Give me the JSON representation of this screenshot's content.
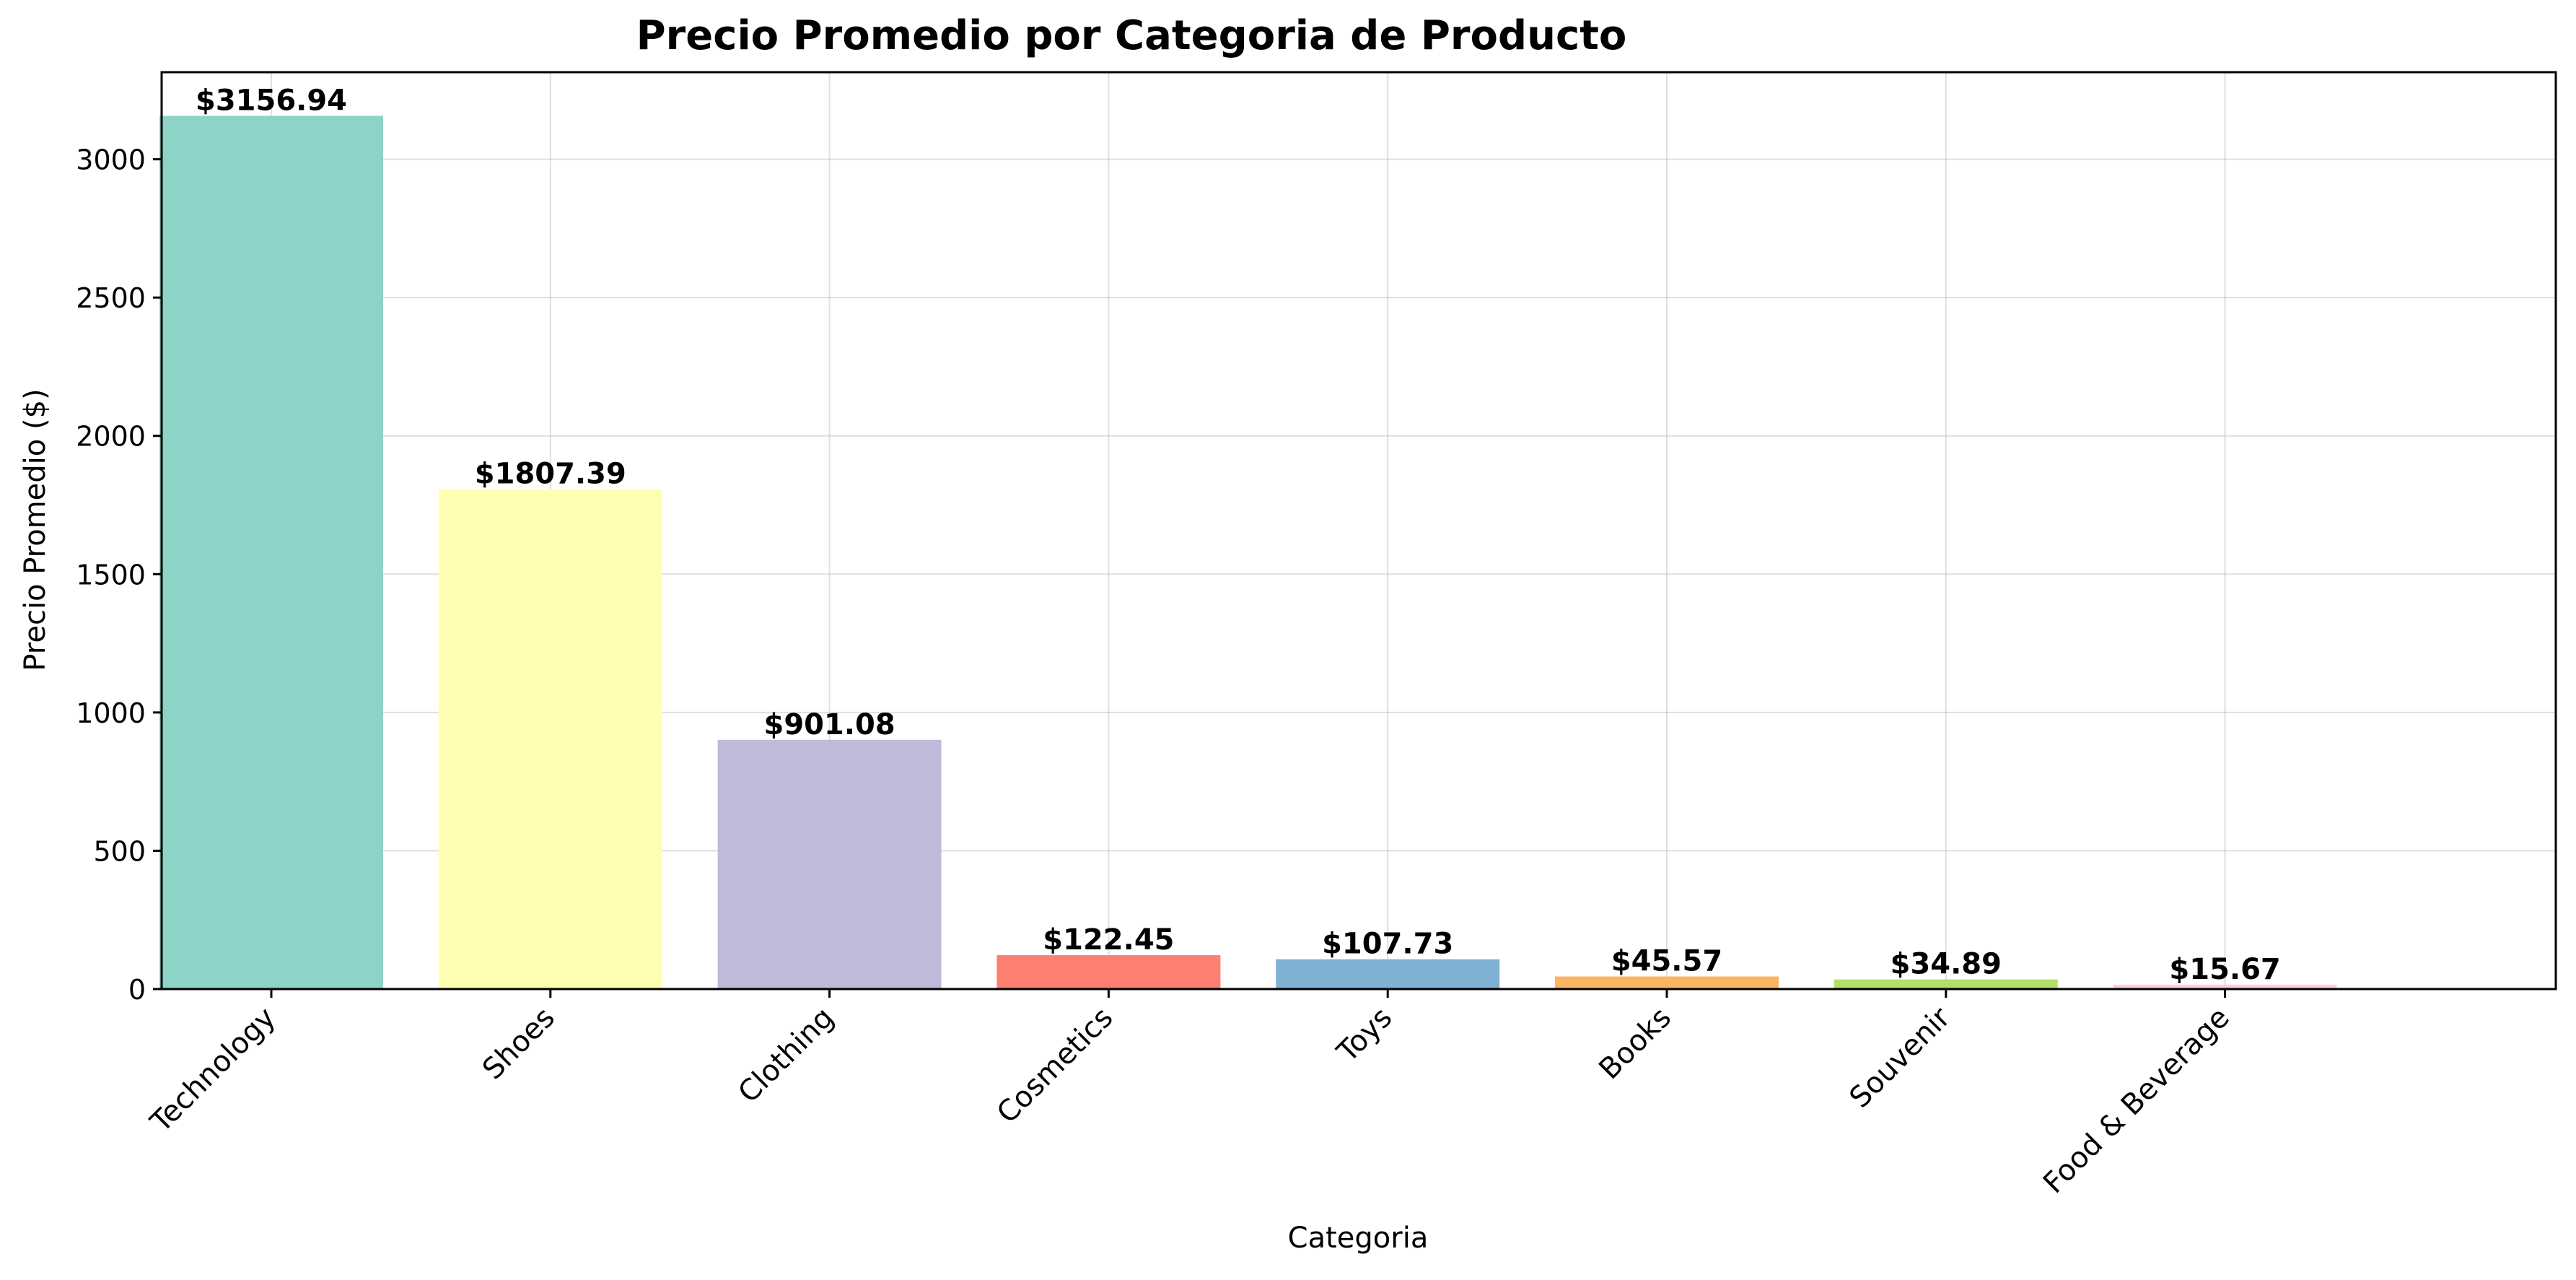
{
  "chart_data": {
    "type": "bar",
    "title": "Precio Promedio por Categoria de Producto",
    "xlabel": "Categoria",
    "ylabel": "Precio Promedio ($)",
    "categories": [
      "Technology",
      "Shoes",
      "Clothing",
      "Cosmetics",
      "Toys",
      "Books",
      "Souvenir",
      "Food & Beverage"
    ],
    "values": [
      3156.94,
      1807.39,
      901.08,
      122.45,
      107.73,
      45.57,
      34.89,
      15.67
    ],
    "data_labels": [
      "$3156.94",
      "$1807.39",
      "$901.08",
      "$122.45",
      "$107.73",
      "$45.57",
      "$34.89",
      "$15.67"
    ],
    "colors": [
      "#8dd3c7",
      "#ffffb3",
      "#bebada",
      "#fb8072",
      "#80b1d3",
      "#fdb462",
      "#b3de69",
      "#fccde5"
    ],
    "yticks": [
      0,
      500,
      1000,
      1500,
      2000,
      2500,
      3000
    ],
    "ylim": [
      0,
      3314.79
    ],
    "grid": true,
    "legend": "none"
  }
}
